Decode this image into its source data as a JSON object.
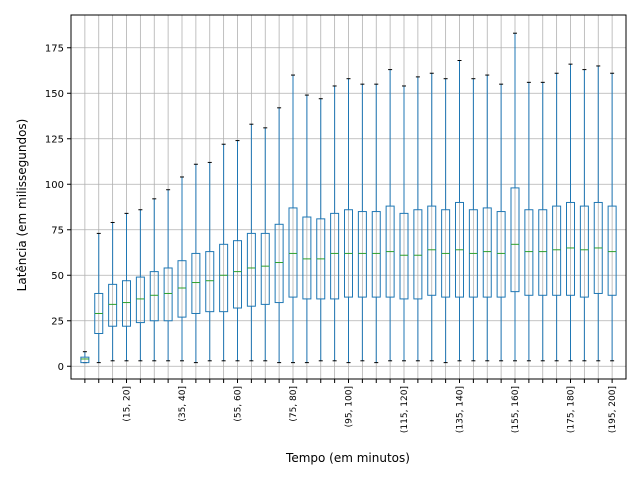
{
  "chart_data": {
    "type": "boxplot",
    "xlabel": "Tempo (em minutos)",
    "ylabel": "Latência (em milissegundos)",
    "ylim": [
      -7,
      193
    ],
    "yticks": [
      0,
      25,
      50,
      75,
      100,
      125,
      150,
      175
    ],
    "ytick_labels": [
      "0",
      "25",
      "50",
      "75",
      "100",
      "125",
      "150",
      "175"
    ],
    "grid": true,
    "colors": {
      "box": "#1f77b4",
      "median": "#2ca02c",
      "grid": "#b0b0b0"
    },
    "shown_xtick_labels": [
      "(15, 20]",
      "(35, 40]",
      "(55, 60]",
      "(75, 80]",
      "(95, 100]",
      "(115, 120]",
      "(135, 140]",
      "(155, 160]",
      "(175, 180]",
      "(195, 200]"
    ],
    "boxes": [
      {
        "label": "",
        "whisker_low": 2,
        "q1": 2,
        "median": 4,
        "q3": 5,
        "whisker_high": 8
      },
      {
        "label": "",
        "whisker_low": 2,
        "q1": 18,
        "median": 29,
        "q3": 40,
        "whisker_high": 73
      },
      {
        "label": "",
        "whisker_low": 3,
        "q1": 22,
        "median": 34,
        "q3": 45,
        "whisker_high": 79
      },
      {
        "label": "(15, 20]",
        "whisker_low": 3,
        "q1": 22,
        "median": 35,
        "q3": 47,
        "whisker_high": 84
      },
      {
        "label": "",
        "whisker_low": 3,
        "q1": 24,
        "median": 37,
        "q3": 49,
        "whisker_high": 86
      },
      {
        "label": "",
        "whisker_low": 3,
        "q1": 25,
        "median": 39,
        "q3": 52,
        "whisker_high": 92
      },
      {
        "label": "",
        "whisker_low": 3,
        "q1": 25,
        "median": 40,
        "q3": 54,
        "whisker_high": 97
      },
      {
        "label": "(35, 40]",
        "whisker_low": 3,
        "q1": 27,
        "median": 43,
        "q3": 58,
        "whisker_high": 104
      },
      {
        "label": "",
        "whisker_low": 2,
        "q1": 29,
        "median": 46,
        "q3": 62,
        "whisker_high": 111
      },
      {
        "label": "",
        "whisker_low": 3,
        "q1": 30,
        "median": 47,
        "q3": 63,
        "whisker_high": 112
      },
      {
        "label": "",
        "whisker_low": 3,
        "q1": 30,
        "median": 50,
        "q3": 67,
        "whisker_high": 122
      },
      {
        "label": "(55, 60]",
        "whisker_low": 3,
        "q1": 32,
        "median": 52,
        "q3": 69,
        "whisker_high": 124
      },
      {
        "label": "",
        "whisker_low": 3,
        "q1": 33,
        "median": 54,
        "q3": 73,
        "whisker_high": 133
      },
      {
        "label": "",
        "whisker_low": 3,
        "q1": 34,
        "median": 55,
        "q3": 73,
        "whisker_high": 131
      },
      {
        "label": "",
        "whisker_low": 2,
        "q1": 35,
        "median": 57,
        "q3": 78,
        "whisker_high": 142
      },
      {
        "label": "(75, 80]",
        "whisker_low": 2,
        "q1": 38,
        "median": 62,
        "q3": 87,
        "whisker_high": 160
      },
      {
        "label": "",
        "whisker_low": 2,
        "q1": 37,
        "median": 59,
        "q3": 82,
        "whisker_high": 149
      },
      {
        "label": "",
        "whisker_low": 3,
        "q1": 37,
        "median": 59,
        "q3": 81,
        "whisker_high": 147
      },
      {
        "label": "",
        "whisker_low": 3,
        "q1": 37,
        "median": 62,
        "q3": 84,
        "whisker_high": 154
      },
      {
        "label": "(95, 100]",
        "whisker_low": 2,
        "q1": 38,
        "median": 62,
        "q3": 86,
        "whisker_high": 158
      },
      {
        "label": "",
        "whisker_low": 3,
        "q1": 38,
        "median": 62,
        "q3": 85,
        "whisker_high": 155
      },
      {
        "label": "",
        "whisker_low": 2,
        "q1": 38,
        "median": 62,
        "q3": 85,
        "whisker_high": 155
      },
      {
        "label": "",
        "whisker_low": 3,
        "q1": 38,
        "median": 63,
        "q3": 88,
        "whisker_high": 163
      },
      {
        "label": "(115, 120]",
        "whisker_low": 3,
        "q1": 37,
        "median": 61,
        "q3": 84,
        "whisker_high": 154
      },
      {
        "label": "",
        "whisker_low": 3,
        "q1": 37,
        "median": 61,
        "q3": 86,
        "whisker_high": 159
      },
      {
        "label": "",
        "whisker_low": 3,
        "q1": 39,
        "median": 64,
        "q3": 88,
        "whisker_high": 161
      },
      {
        "label": "",
        "whisker_low": 2,
        "q1": 38,
        "median": 62,
        "q3": 86,
        "whisker_high": 158
      },
      {
        "label": "(135, 140]",
        "whisker_low": 3,
        "q1": 38,
        "median": 64,
        "q3": 90,
        "whisker_high": 168
      },
      {
        "label": "",
        "whisker_low": 3,
        "q1": 38,
        "median": 62,
        "q3": 86,
        "whisker_high": 158
      },
      {
        "label": "",
        "whisker_low": 3,
        "q1": 38,
        "median": 63,
        "q3": 87,
        "whisker_high": 160
      },
      {
        "label": "",
        "whisker_low": 3,
        "q1": 38,
        "median": 62,
        "q3": 85,
        "whisker_high": 155
      },
      {
        "label": "(155, 160]",
        "whisker_low": 3,
        "q1": 41,
        "median": 67,
        "q3": 98,
        "whisker_high": 183
      },
      {
        "label": "",
        "whisker_low": 3,
        "q1": 39,
        "median": 63,
        "q3": 86,
        "whisker_high": 156
      },
      {
        "label": "",
        "whisker_low": 3,
        "q1": 39,
        "median": 63,
        "q3": 86,
        "whisker_high": 156
      },
      {
        "label": "",
        "whisker_low": 3,
        "q1": 39,
        "median": 64,
        "q3": 88,
        "whisker_high": 161
      },
      {
        "label": "(175, 180]",
        "whisker_low": 3,
        "q1": 39,
        "median": 65,
        "q3": 90,
        "whisker_high": 166
      },
      {
        "label": "",
        "whisker_low": 3,
        "q1": 38,
        "median": 64,
        "q3": 88,
        "whisker_high": 163
      },
      {
        "label": "",
        "whisker_low": 3,
        "q1": 40,
        "median": 65,
        "q3": 90,
        "whisker_high": 165
      },
      {
        "label": "(195, 200]",
        "whisker_low": 3,
        "q1": 39,
        "median": 63,
        "q3": 88,
        "whisker_high": 161
      }
    ]
  }
}
